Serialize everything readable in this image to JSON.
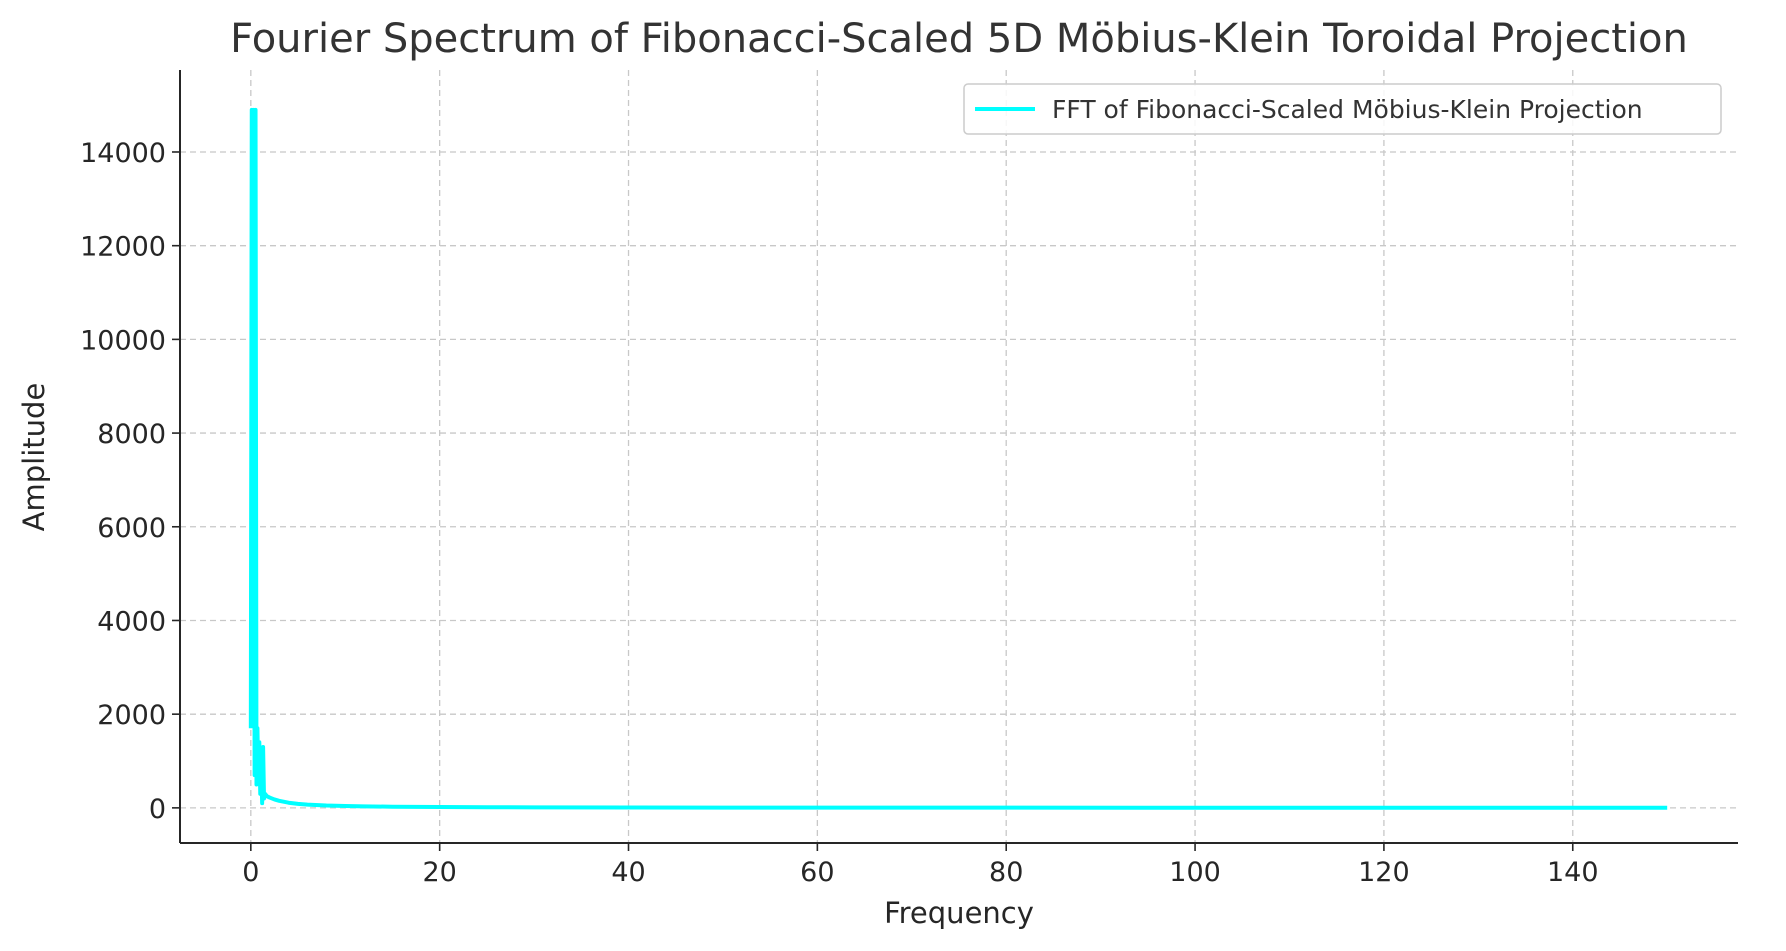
{
  "chart_data": {
    "type": "line",
    "title": "Fourier Spectrum of Fibonacci-Scaled 5D Möbius-Klein Toroidal Projection",
    "xlabel": "Frequency",
    "ylabel": "Amplitude",
    "xlim": [
      -7.5,
      157.5
    ],
    "ylim": [
      -750,
      15750
    ],
    "xticks": [
      0,
      20,
      40,
      60,
      80,
      100,
      120,
      140
    ],
    "yticks": [
      0,
      2000,
      4000,
      6000,
      8000,
      10000,
      12000,
      14000
    ],
    "grid": true,
    "legend_position": "top-right",
    "series": [
      {
        "name": "FFT of Fibonacci-Scaled Möbius-Klein Projection",
        "color": "#00ffff",
        "x": [
          0,
          0.1,
          0.2,
          0.3,
          0.4,
          0.5,
          0.6,
          0.7,
          0.8,
          0.9,
          1.0,
          1.1,
          1.2,
          1.3,
          1.4,
          1.5,
          1.7,
          2,
          2.5,
          3,
          4,
          5,
          6,
          8,
          10,
          12,
          15,
          20,
          25,
          30,
          40,
          50,
          60,
          80,
          100,
          120,
          140,
          150
        ],
        "y": [
          1700,
          14900,
          1800,
          14900,
          700,
          14900,
          500,
          1700,
          600,
          1400,
          300,
          900,
          100,
          1300,
          200,
          300,
          250,
          220,
          180,
          150,
          110,
          85,
          70,
          50,
          40,
          32,
          25,
          18,
          14,
          11,
          8,
          6,
          5,
          4,
          3,
          3,
          2,
          2
        ]
      }
    ]
  }
}
